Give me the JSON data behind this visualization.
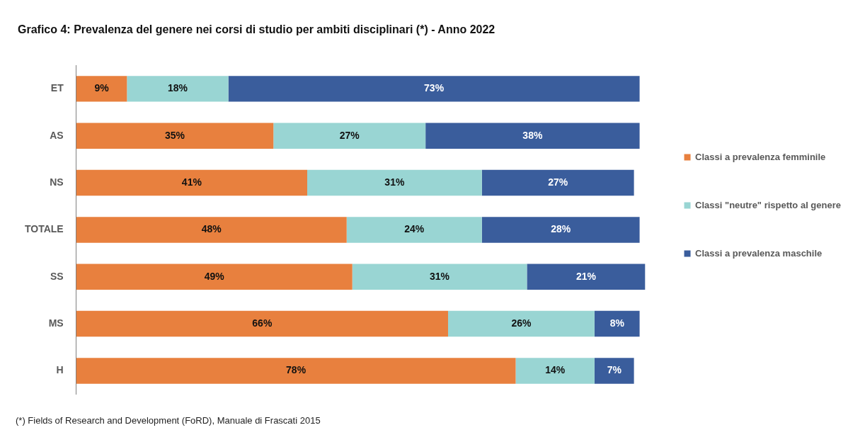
{
  "chart_data": {
    "type": "bar",
    "orientation": "horizontal",
    "stacked": true,
    "title": "Grafico 4: Prevalenza del genere nei corsi di studio per ambiti disciplinari (*) - Anno 2022",
    "categories": [
      "ET",
      "AS",
      "NS",
      "TOTALE",
      "SS",
      "MS",
      "H"
    ],
    "series": [
      {
        "name": "Classi a prevalenza femminile",
        "color": "#e8803e",
        "values": [
          9,
          35,
          41,
          48,
          49,
          66,
          78
        ],
        "value_labels": [
          "9%",
          "35%",
          "41%",
          "48%",
          "49%",
          "66%",
          "78%"
        ]
      },
      {
        "name": "Classi \"neutre\" rispetto al genere",
        "color": "#99d5d3",
        "values": [
          18,
          27,
          31,
          24,
          31,
          26,
          14
        ],
        "value_labels": [
          "18%",
          "27%",
          "31%",
          "24%",
          "31%",
          "26%",
          "14%"
        ]
      },
      {
        "name": "Classi a prevalenza maschile",
        "color": "#3a5d9c",
        "values": [
          73,
          38,
          27,
          28,
          21,
          8,
          7
        ],
        "value_labels": [
          "73%",
          "38%",
          "27%",
          "28%",
          "21%",
          "8%",
          "7%"
        ]
      }
    ],
    "legend": "right",
    "annotations": [
      "(*) Fields of Research and Development (FoRD), Manuale di Frascati 2015"
    ]
  }
}
